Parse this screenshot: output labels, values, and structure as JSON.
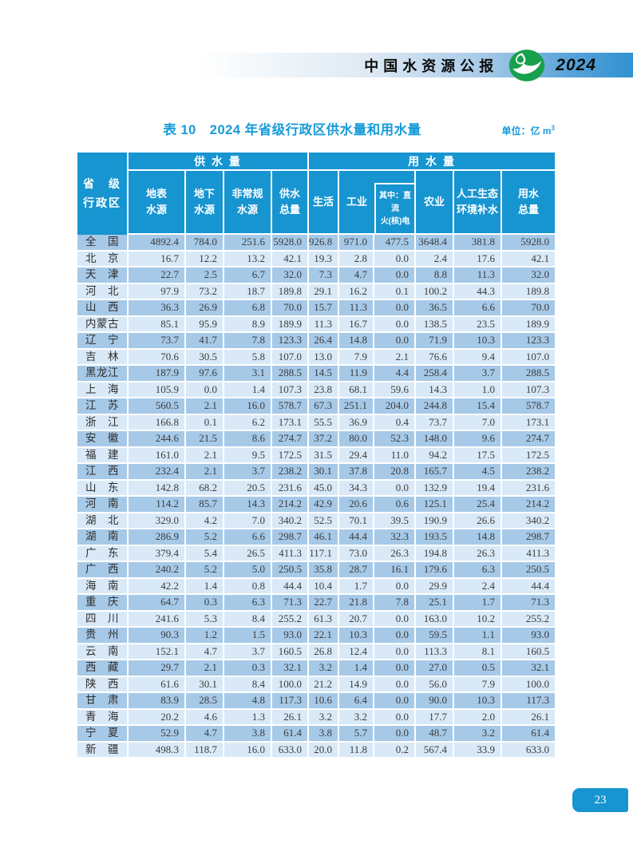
{
  "page": {
    "header_bar": {
      "title": "中国水资源公报",
      "year": "2024"
    },
    "table_title": "表 10　2024 年省级行政区供水量和用水量",
    "unit_label": "单位：亿 m",
    "unit_superscript": "3",
    "page_number": "23"
  },
  "colors": {
    "header_blue": "#1795d1",
    "banner_blue": "#2f92d1",
    "title_blue": "#189bd8",
    "row_dark": "#a6c9e8",
    "row_light": "#d9e9f7",
    "logo_green": "#18a04d"
  },
  "table": {
    "corner_header": "省　级\n行政区",
    "groups": {
      "supply": "供 水 量",
      "use": "用 水 量"
    },
    "supply_columns": [
      "地表\n水源",
      "地下\n水源",
      "非常规\n水源",
      "供水\n总量"
    ],
    "use_columns": [
      "生活",
      "工业",
      "其中：直流\n火(核)电",
      "农业",
      "人工生态\n环境补水",
      "用水\n总量"
    ],
    "rows": [
      {
        "region": "全　国",
        "values": [
          "4892.4",
          "784.0",
          "251.6",
          "5928.0",
          "926.8",
          "971.0",
          "477.5",
          "3648.4",
          "381.8",
          "5928.0"
        ]
      },
      {
        "region": "北　京",
        "values": [
          "16.7",
          "12.2",
          "13.2",
          "42.1",
          "19.3",
          "2.8",
          "0.0",
          "2.4",
          "17.6",
          "42.1"
        ]
      },
      {
        "region": "天　津",
        "values": [
          "22.7",
          "2.5",
          "6.7",
          "32.0",
          "7.3",
          "4.7",
          "0.0",
          "8.8",
          "11.3",
          "32.0"
        ]
      },
      {
        "region": "河　北",
        "values": [
          "97.9",
          "73.2",
          "18.7",
          "189.8",
          "29.1",
          "16.2",
          "0.1",
          "100.2",
          "44.3",
          "189.8"
        ]
      },
      {
        "region": "山　西",
        "values": [
          "36.3",
          "26.9",
          "6.8",
          "70.0",
          "15.7",
          "11.3",
          "0.0",
          "36.5",
          "6.6",
          "70.0"
        ]
      },
      {
        "region": "内蒙古",
        "values": [
          "85.1",
          "95.9",
          "8.9",
          "189.9",
          "11.3",
          "16.7",
          "0.0",
          "138.5",
          "23.5",
          "189.9"
        ]
      },
      {
        "region": "辽　宁",
        "values": [
          "73.7",
          "41.7",
          "7.8",
          "123.3",
          "26.4",
          "14.8",
          "0.0",
          "71.9",
          "10.3",
          "123.3"
        ]
      },
      {
        "region": "吉　林",
        "values": [
          "70.6",
          "30.5",
          "5.8",
          "107.0",
          "13.0",
          "7.9",
          "2.1",
          "76.6",
          "9.4",
          "107.0"
        ]
      },
      {
        "region": "黑龙江",
        "values": [
          "187.9",
          "97.6",
          "3.1",
          "288.5",
          "14.5",
          "11.9",
          "4.4",
          "258.4",
          "3.7",
          "288.5"
        ]
      },
      {
        "region": "上　海",
        "values": [
          "105.9",
          "0.0",
          "1.4",
          "107.3",
          "23.8",
          "68.1",
          "59.6",
          "14.3",
          "1.0",
          "107.3"
        ]
      },
      {
        "region": "江　苏",
        "values": [
          "560.5",
          "2.1",
          "16.0",
          "578.7",
          "67.3",
          "251.1",
          "204.0",
          "244.8",
          "15.4",
          "578.7"
        ]
      },
      {
        "region": "浙　江",
        "values": [
          "166.8",
          "0.1",
          "6.2",
          "173.1",
          "55.5",
          "36.9",
          "0.4",
          "73.7",
          "7.0",
          "173.1"
        ]
      },
      {
        "region": "安　徽",
        "values": [
          "244.6",
          "21.5",
          "8.6",
          "274.7",
          "37.2",
          "80.0",
          "52.3",
          "148.0",
          "9.6",
          "274.7"
        ]
      },
      {
        "region": "福　建",
        "values": [
          "161.0",
          "2.1",
          "9.5",
          "172.5",
          "31.5",
          "29.4",
          "11.0",
          "94.2",
          "17.5",
          "172.5"
        ]
      },
      {
        "region": "江　西",
        "values": [
          "232.4",
          "2.1",
          "3.7",
          "238.2",
          "30.1",
          "37.8",
          "20.8",
          "165.7",
          "4.5",
          "238.2"
        ]
      },
      {
        "region": "山　东",
        "values": [
          "142.8",
          "68.2",
          "20.5",
          "231.6",
          "45.0",
          "34.3",
          "0.0",
          "132.9",
          "19.4",
          "231.6"
        ]
      },
      {
        "region": "河　南",
        "values": [
          "114.2",
          "85.7",
          "14.3",
          "214.2",
          "42.9",
          "20.6",
          "0.6",
          "125.1",
          "25.4",
          "214.2"
        ]
      },
      {
        "region": "湖　北",
        "values": [
          "329.0",
          "4.2",
          "7.0",
          "340.2",
          "52.5",
          "70.1",
          "39.5",
          "190.9",
          "26.6",
          "340.2"
        ]
      },
      {
        "region": "湖　南",
        "values": [
          "286.9",
          "5.2",
          "6.6",
          "298.7",
          "46.1",
          "44.4",
          "32.3",
          "193.5",
          "14.8",
          "298.7"
        ]
      },
      {
        "region": "广　东",
        "values": [
          "379.4",
          "5.4",
          "26.5",
          "411.3",
          "117.1",
          "73.0",
          "26.3",
          "194.8",
          "26.3",
          "411.3"
        ]
      },
      {
        "region": "广　西",
        "values": [
          "240.2",
          "5.2",
          "5.0",
          "250.5",
          "35.8",
          "28.7",
          "16.1",
          "179.6",
          "6.3",
          "250.5"
        ]
      },
      {
        "region": "海　南",
        "values": [
          "42.2",
          "1.4",
          "0.8",
          "44.4",
          "10.4",
          "1.7",
          "0.0",
          "29.9",
          "2.4",
          "44.4"
        ]
      },
      {
        "region": "重　庆",
        "values": [
          "64.7",
          "0.3",
          "6.3",
          "71.3",
          "22.7",
          "21.8",
          "7.8",
          "25.1",
          "1.7",
          "71.3"
        ]
      },
      {
        "region": "四　川",
        "values": [
          "241.6",
          "5.3",
          "8.4",
          "255.2",
          "61.3",
          "20.7",
          "0.0",
          "163.0",
          "10.2",
          "255.2"
        ]
      },
      {
        "region": "贵　州",
        "values": [
          "90.3",
          "1.2",
          "1.5",
          "93.0",
          "22.1",
          "10.3",
          "0.0",
          "59.5",
          "1.1",
          "93.0"
        ]
      },
      {
        "region": "云　南",
        "values": [
          "152.1",
          "4.7",
          "3.7",
          "160.5",
          "26.8",
          "12.4",
          "0.0",
          "113.3",
          "8.1",
          "160.5"
        ]
      },
      {
        "region": "西　藏",
        "values": [
          "29.7",
          "2.1",
          "0.3",
          "32.1",
          "3.2",
          "1.4",
          "0.0",
          "27.0",
          "0.5",
          "32.1"
        ]
      },
      {
        "region": "陕　西",
        "values": [
          "61.6",
          "30.1",
          "8.4",
          "100.0",
          "21.2",
          "14.9",
          "0.0",
          "56.0",
          "7.9",
          "100.0"
        ]
      },
      {
        "region": "甘　肃",
        "values": [
          "83.9",
          "28.5",
          "4.8",
          "117.3",
          "10.6",
          "6.4",
          "0.0",
          "90.0",
          "10.3",
          "117.3"
        ]
      },
      {
        "region": "青　海",
        "values": [
          "20.2",
          "4.6",
          "1.3",
          "26.1",
          "3.2",
          "3.2",
          "0.0",
          "17.7",
          "2.0",
          "26.1"
        ]
      },
      {
        "region": "宁　夏",
        "values": [
          "52.9",
          "4.7",
          "3.8",
          "61.4",
          "3.8",
          "5.7",
          "0.0",
          "48.7",
          "3.2",
          "61.4"
        ]
      },
      {
        "region": "新　疆",
        "values": [
          "498.3",
          "118.7",
          "16.0",
          "633.0",
          "20.0",
          "11.8",
          "0.2",
          "567.4",
          "33.9",
          "633.0"
        ]
      }
    ]
  }
}
